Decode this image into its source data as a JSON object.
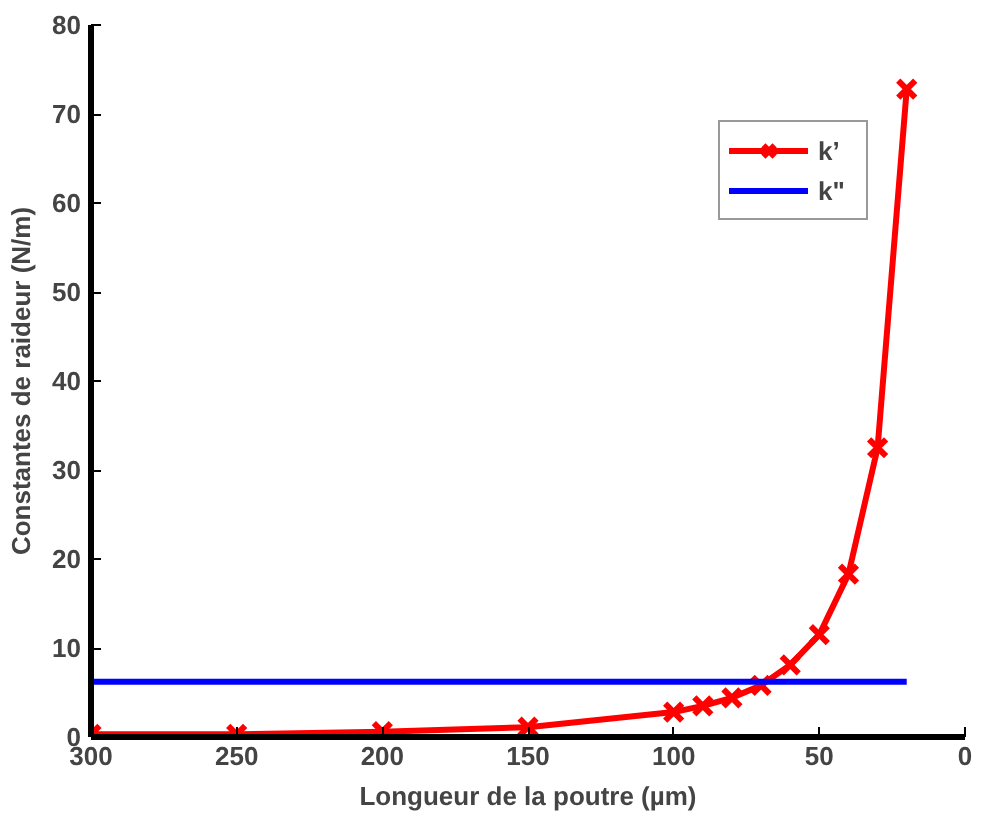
{
  "chart_data": {
    "type": "line",
    "xlabel": "Longueur de la poutre (µm)",
    "ylabel": "Constantes de raideur (N/m)",
    "xlim": [
      300,
      0
    ],
    "ylim": [
      0,
      80
    ],
    "xticks": [
      300,
      250,
      200,
      150,
      100,
      50,
      0
    ],
    "yticks": [
      0,
      10,
      20,
      30,
      40,
      50,
      60,
      70,
      80
    ],
    "grid": false,
    "legend": "top right",
    "series": [
      {
        "name": "k’",
        "color": "#ff0000",
        "marker": "cross",
        "x": [
          300,
          250,
          200,
          150,
          100,
          90,
          80,
          70,
          60,
          50,
          40,
          30,
          20
        ],
        "values": [
          0.3,
          0.3,
          0.6,
          1.1,
          2.8,
          3.5,
          4.4,
          5.8,
          8.1,
          11.5,
          18.3,
          32.5,
          72.8
        ]
      },
      {
        "name": "k\"",
        "color": "#0000ff",
        "marker": "none",
        "x": [
          300,
          20
        ],
        "values": [
          6.2,
          6.2
        ]
      }
    ]
  }
}
